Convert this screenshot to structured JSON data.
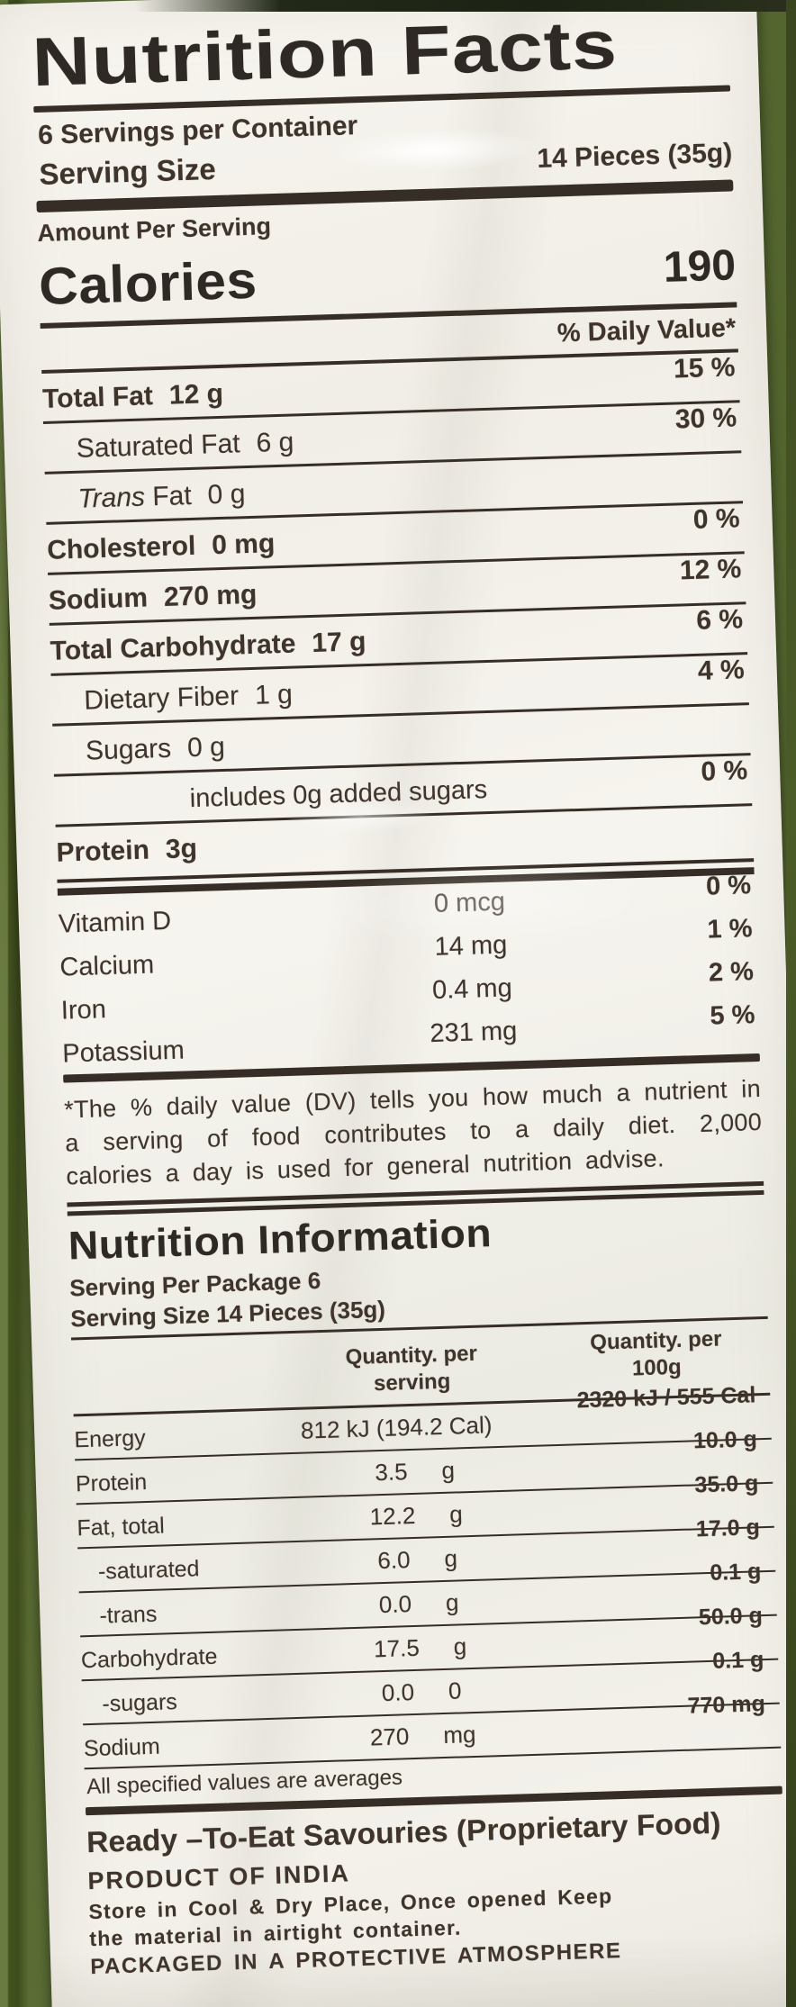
{
  "colors": {
    "bg_green": "#5e7038",
    "bg_green_dark": "#44521e",
    "label_bg": "#f4f1ea",
    "ink": "#3f342c",
    "ink_strong": "#2e2925"
  },
  "panel1": {
    "title": "Nutrition Facts",
    "servings_per_container": "6 Servings per Container",
    "serving_size_label": "Serving Size",
    "serving_size_value": "14 Pieces (35g)",
    "amount_per_serving": "Amount Per Serving",
    "calories_label": "Calories",
    "calories_value": "190",
    "daily_value_header": "% Daily Value*",
    "rows": [
      {
        "name": "Total Fat",
        "amount": "12 g",
        "dv": "15 %"
      },
      {
        "name": "Saturated Fat",
        "amount": "6 g",
        "dv": "30 %"
      },
      {
        "name_italic": "Trans",
        "name": " Fat",
        "amount": "0 g",
        "dv": ""
      },
      {
        "name": "Cholesterol",
        "amount": "0 mg",
        "dv": "0 %"
      },
      {
        "name": "Sodium",
        "amount": "270 mg",
        "dv": "12 %"
      },
      {
        "name": "Total Carbohydrate",
        "amount": "17 g",
        "dv": "6 %"
      },
      {
        "name": "Dietary Fiber",
        "amount": "1 g",
        "dv": "4 %"
      },
      {
        "name": "Sugars",
        "amount": "0 g",
        "dv": ""
      },
      {
        "name": "includes 0g added sugars",
        "amount": "",
        "dv": "0 %"
      },
      {
        "name": "Protein",
        "amount": "3g",
        "dv": ""
      }
    ],
    "vitamins": [
      {
        "name": "Vitamin D",
        "amount": "0 mcg",
        "dv": "0 %"
      },
      {
        "name": "Calcium",
        "amount": "14 mg",
        "dv": "1 %"
      },
      {
        "name": "Iron",
        "amount": "0.4 mg",
        "dv": "2 %"
      },
      {
        "name": "Potassium",
        "amount": "231 mg",
        "dv": "5 %"
      }
    ],
    "footnote": "*The % daily value (DV) tells you how much a nutrient in a serving of food contributes to a daily diet. 2,000 calories a day is used for general nutrition advise."
  },
  "panel2": {
    "title": "Nutrition Information",
    "serving_per_package": "Serving Per Package 6",
    "serving_size": "Serving Size 14 Pieces (35g)",
    "col_serving": "Quantity. per serving",
    "col_100g": "Quantity. per 100g",
    "rows": [
      {
        "name": "Energy",
        "qty": "812 kJ (194.2 Cal)",
        "unit": "",
        "per100": "2320 kJ / 555 Cal"
      },
      {
        "name": "Protein",
        "qty": "3.5",
        "unit": "g",
        "per100": "10.0 g"
      },
      {
        "name": "Fat, total",
        "qty": "12.2",
        "unit": "g",
        "per100": "35.0 g"
      },
      {
        "name": "-saturated",
        "qty": "6.0",
        "unit": "g",
        "per100": "17.0 g"
      },
      {
        "name": "-trans",
        "qty": "0.0",
        "unit": "g",
        "per100": "0.1 g"
      },
      {
        "name": "Carbohydrate",
        "qty": "17.5",
        "unit": "g",
        "per100": "50.0 g"
      },
      {
        "name": "-sugars",
        "qty": "0.0",
        "unit": "0",
        "per100": "0.1 g"
      },
      {
        "name": "Sodium",
        "qty": "270",
        "unit": "mg",
        "per100": "770 mg"
      }
    ],
    "note": "All specified values are averages"
  },
  "footer": {
    "product_type": "Ready –To-Eat Savouries (Proprietary Food)",
    "origin": "PRODUCT OF INDIA",
    "storage_line1": "Store in Cool & Dry Place, Once opened Keep",
    "storage_line2": "the material in airtight container.",
    "packaging": "PACKAGED IN A PROTECTIVE ATMOSPHERE"
  }
}
